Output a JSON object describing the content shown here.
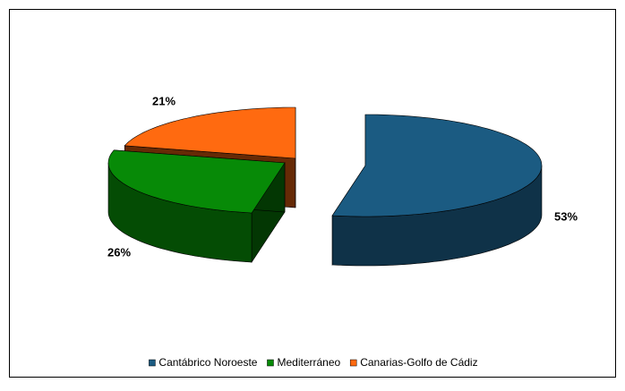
{
  "chart_data": {
    "type": "pie",
    "categories": [
      "Cantábrico Noroeste",
      "Mediterráneo",
      "Canarias-Golfo de Cádiz"
    ],
    "values": [
      53,
      26,
      21
    ],
    "value_labels": [
      "53%",
      "26%",
      "21%"
    ],
    "colors": [
      "#1b5b82",
      "#078a07",
      "#ff6a10"
    ],
    "legend": "bottom"
  }
}
